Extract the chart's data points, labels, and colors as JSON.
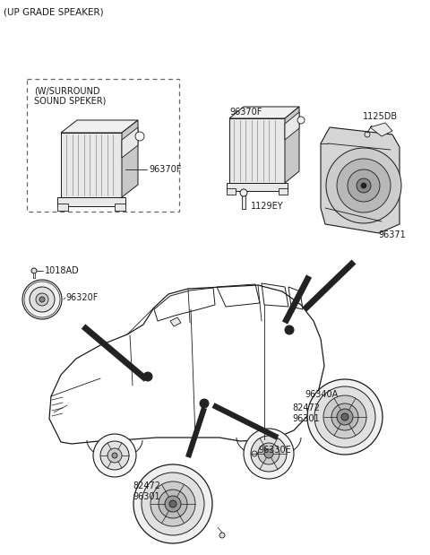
{
  "bg_color": "#ffffff",
  "line_color": "#1a1a1a",
  "gray_fill": "#c8c8c8",
  "light_gray": "#e8e8e8",
  "dark_fill": "#222222",
  "figsize": [
    4.8,
    6.19
  ],
  "dpi": 100,
  "labels": {
    "title": "(UP GRADE SPEAKER)",
    "surround": "(W/SURROUND\nSOUND SPEKER)",
    "96370F_L": "96370F",
    "96370F_R": "96370F",
    "1125DB": "1125DB",
    "1129EY": "1129EY",
    "96371": "96371",
    "1018AD": "1018AD",
    "96320F": "96320F",
    "96340A": "96340A",
    "82472_96301_R": "82472\n96301",
    "96330E": "96330E",
    "82472_96301_B": "82472\n96301"
  }
}
